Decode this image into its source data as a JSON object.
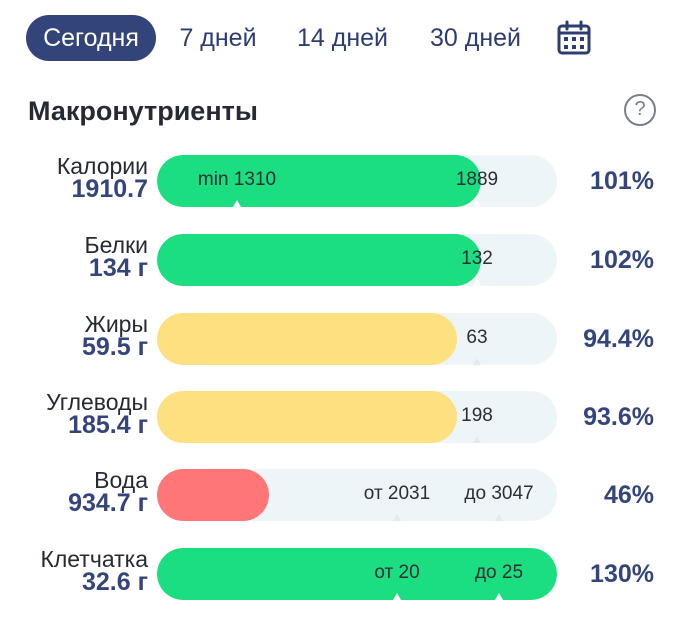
{
  "tabs": [
    {
      "label": "Сегодня",
      "active": true
    },
    {
      "label": "7 дней",
      "active": false
    },
    {
      "label": "14 дней",
      "active": false
    },
    {
      "label": "30 дней",
      "active": false
    }
  ],
  "calendar_icon": "calendar-icon",
  "section_title": "Макронутриенты",
  "help_icon": "help-icon",
  "help_glyph": "?",
  "colors": {
    "accent": "#33447a",
    "green": "#1bde80",
    "yellow": "#fde07f",
    "red": "#ff7676",
    "track": "#eef5f8"
  },
  "rows": [
    {
      "label": "Калории",
      "value": "1910.7",
      "percent": "101%",
      "fill_fraction": 0.81,
      "color": "green",
      "ticks": [
        {
          "text": "min 1310",
          "at": 0.2
        },
        {
          "text": "1889",
          "at": 0.8
        }
      ]
    },
    {
      "label": "Белки",
      "value": "134 г",
      "percent": "102%",
      "fill_fraction": 0.81,
      "color": "green",
      "ticks": [
        {
          "text": "132",
          "at": 0.8
        }
      ]
    },
    {
      "label": "Жиры",
      "value": "59.5 г",
      "percent": "94.4%",
      "fill_fraction": 0.75,
      "color": "yellow",
      "ticks": [
        {
          "text": "63",
          "at": 0.8
        }
      ]
    },
    {
      "label": "Углеводы",
      "value": "185.4 г",
      "percent": "93.6%",
      "fill_fraction": 0.75,
      "color": "yellow",
      "ticks": [
        {
          "text": "198",
          "at": 0.8
        }
      ]
    },
    {
      "label": "Вода",
      "value": "934.7 г",
      "percent": "46%",
      "fill_fraction": 0.28,
      "color": "red",
      "ticks": [
        {
          "text": "от 2031",
          "at": 0.6
        },
        {
          "text": "до 3047",
          "at": 0.855
        }
      ]
    },
    {
      "label": "Клетчатка",
      "value": "32.6 г",
      "percent": "130%",
      "fill_fraction": 1.0,
      "color": "green",
      "ticks": [
        {
          "text": "от 20",
          "at": 0.6
        },
        {
          "text": "до 25",
          "at": 0.855
        }
      ]
    }
  ]
}
